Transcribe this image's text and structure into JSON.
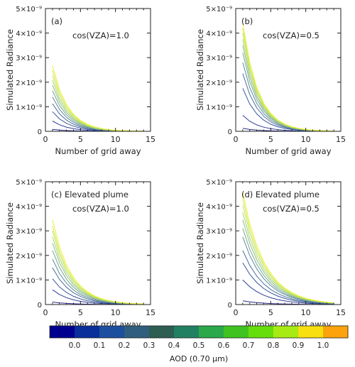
{
  "chart_data": [
    {
      "type": "line",
      "panel_label": "(a)",
      "annotation": "cos(VZA)=1.0",
      "xlabel": "Number of grid away",
      "ylabel": "Simulated Radiance",
      "xlim": [
        0,
        15
      ],
      "ylim": [
        0,
        5e-09
      ],
      "xticks": [
        "0",
        "5",
        "10",
        "15"
      ],
      "yticks": [
        "0",
        "1×10⁻⁹",
        "2×10⁻⁹",
        "3×10⁻⁹",
        "4×10⁻⁹",
        "5×10⁻⁹"
      ],
      "x": [
        1,
        2,
        3,
        4,
        5,
        6,
        7,
        8,
        9,
        10,
        11,
        12,
        13,
        14
      ],
      "peak_values": [
        8e-11,
        4.2e-10,
        8e-10,
        1.12e-09,
        1.4e-09,
        1.65e-09,
        1.88e-09,
        2.08e-09,
        2.28e-09,
        2.48e-09,
        2.68e-09
      ],
      "decay_k": 0.45
    },
    {
      "type": "line",
      "panel_label": "(b)",
      "annotation": "cos(VZA)=0.5",
      "xlabel": "Number of grid away",
      "ylabel": "Simulated Radiance",
      "xlim": [
        0,
        15
      ],
      "ylim": [
        0,
        5e-09
      ],
      "xticks": [
        "0",
        "5",
        "10",
        "15"
      ],
      "yticks": [
        "0",
        "1×10⁻⁹",
        "2×10⁻⁹",
        "3×10⁻⁹",
        "4×10⁻⁹",
        "5×10⁻⁹"
      ],
      "x": [
        1,
        2,
        3,
        4,
        5,
        6,
        7,
        8,
        9,
        10,
        11,
        12,
        13,
        14
      ],
      "peak_values": [
        1.2e-10,
        6.5e-10,
        1.75e-09,
        2.35e-09,
        2.8e-09,
        3.2e-09,
        3.5e-09,
        3.75e-09,
        4e-09,
        4.2e-09,
        4.4e-09
      ],
      "decay_k": 0.45
    },
    {
      "type": "line",
      "panel_label": "(c)",
      "annotation": "Elevated plume",
      "annotation2": "cos(VZA)=1.0",
      "xlabel": "Number of grid away",
      "ylabel": "Simulated Radiance",
      "xlim": [
        0,
        15
      ],
      "ylim": [
        0,
        5e-09
      ],
      "xticks": [
        "0",
        "5",
        "10",
        "15"
      ],
      "yticks": [
        "0",
        "1×10⁻⁹",
        "2×10⁻⁹",
        "3×10⁻⁹",
        "4×10⁻⁹",
        "5×10⁻⁹"
      ],
      "x": [
        1,
        2,
        3,
        4,
        5,
        6,
        7,
        8,
        9,
        10,
        11,
        12,
        13,
        14
      ],
      "peak_values": [
        1e-10,
        6e-10,
        1.05e-09,
        1.5e-09,
        1.85e-09,
        2.2e-09,
        2.5e-09,
        2.75e-09,
        3e-09,
        3.2e-09,
        3.45e-09
      ],
      "decay_k": 0.38
    },
    {
      "type": "line",
      "panel_label": "(d)",
      "annotation": "Elevated plume",
      "annotation2": "cos(VZA)=0.5",
      "xlabel": "Number of grid away",
      "ylabel": "Simulated Radiance",
      "xlim": [
        0,
        15
      ],
      "ylim": [
        0,
        5e-09
      ],
      "xticks": [
        "0",
        "5",
        "10",
        "15"
      ],
      "yticks": [
        "0",
        "1×10⁻⁹",
        "2×10⁻⁹",
        "3×10⁻⁹",
        "4×10⁻⁹",
        "5×10⁻⁹"
      ],
      "x": [
        1,
        2,
        3,
        4,
        5,
        6,
        7,
        8,
        9,
        10,
        11,
        12,
        13,
        14
      ],
      "peak_values": [
        1.5e-10,
        1e-09,
        1.7e-09,
        2.2e-09,
        2.75e-09,
        3.1e-09,
        3.45e-09,
        3.75e-09,
        4.05e-09,
        4.3e-09,
        4.55e-09
      ],
      "decay_k": 0.32
    }
  ],
  "colorbar": {
    "label": "AOD (0.70 μm)",
    "ticks": [
      "0.0",
      "0.1",
      "0.2",
      "0.3",
      "0.4",
      "0.5",
      "0.6",
      "0.7",
      "0.8",
      "0.9",
      "1.0"
    ],
    "colors": [
      "#00008f",
      "#0a2f9a",
      "#1d4f9f",
      "#305e7e",
      "#2e5d52",
      "#228062",
      "#2aa84a",
      "#40c220",
      "#66de0c",
      "#a8ea14",
      "#f8df10",
      "#fba20c"
    ]
  },
  "series_colors": [
    "#2a2a8c",
    "#2e3e96",
    "#37569a",
    "#4a6e9c",
    "#5f899a",
    "#76a592",
    "#8fbf84",
    "#a7d670",
    "#bfe45c",
    "#d6ea48",
    "#ecef3a"
  ]
}
